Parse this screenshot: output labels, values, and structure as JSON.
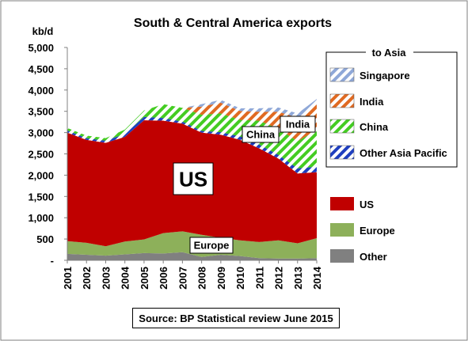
{
  "chart_data": {
    "type": "area",
    "stacked": true,
    "title": "South & Central America exports",
    "ylabel": "kb/d",
    "xlabel": "",
    "source": "Source: BP Statistical review June 2015",
    "ylim": [
      0,
      5000
    ],
    "yticks": [
      0,
      500,
      1000,
      1500,
      2000,
      2500,
      3000,
      3500,
      4000,
      4500,
      5000
    ],
    "ytick_labels": [
      "-",
      "500",
      "1,000",
      "1,500",
      "2,000",
      "2,500",
      "3,000",
      "3,500",
      "4,000",
      "4,500",
      "5,000"
    ],
    "x": [
      "2001",
      "2002",
      "2003",
      "2004",
      "2005",
      "2006",
      "2007",
      "2008",
      "2009",
      "2010",
      "2011",
      "2012",
      "2013",
      "2014"
    ],
    "grid": false,
    "legend_placement": "right",
    "legend_group_title": "to Asia",
    "series": [
      {
        "name": "Other",
        "color": "#808080",
        "hatch": "none",
        "values": [
          150,
          130,
          110,
          140,
          170,
          160,
          190,
          80,
          130,
          100,
          50,
          40,
          40,
          50
        ]
      },
      {
        "name": "Europe",
        "color": "#8db05a",
        "hatch": "none",
        "values": [
          300,
          280,
          220,
          300,
          320,
          480,
          490,
          520,
          400,
          370,
          380,
          430,
          360,
          470
        ]
      },
      {
        "name": "US",
        "color": "#c00000",
        "hatch": "none",
        "values": [
          2550,
          2420,
          2430,
          2460,
          2800,
          2640,
          2530,
          2400,
          2420,
          2360,
          2200,
          1920,
          1640,
          1550
        ]
      },
      {
        "name": "Other Asia Pacific",
        "color": "#1f3fbf",
        "hatch": "diagonal",
        "values": [
          50,
          40,
          50,
          70,
          80,
          60,
          50,
          40,
          60,
          80,
          90,
          90,
          120,
          130
        ]
      },
      {
        "name": "China",
        "color": "#44cc22",
        "hatch": "diagonal",
        "values": [
          60,
          60,
          60,
          100,
          150,
          330,
          320,
          380,
          440,
          390,
          560,
          610,
          640,
          860
        ]
      },
      {
        "name": "India",
        "color": "#e06a22",
        "hatch": "diagonal",
        "values": [
          0,
          0,
          0,
          0,
          0,
          0,
          0,
          190,
          250,
          210,
          210,
          400,
          550,
          600
        ]
      },
      {
        "name": "Singapore",
        "color": "#8fa8d8",
        "hatch": "diagonal",
        "values": [
          0,
          0,
          0,
          0,
          0,
          0,
          0,
          60,
          70,
          60,
          80,
          100,
          100,
          130
        ]
      }
    ],
    "annotations": [
      {
        "text": "US",
        "style": "large-box"
      },
      {
        "text": "Europe",
        "style": "box"
      },
      {
        "text": "China",
        "style": "box"
      },
      {
        "text": "India",
        "style": "box"
      }
    ]
  }
}
